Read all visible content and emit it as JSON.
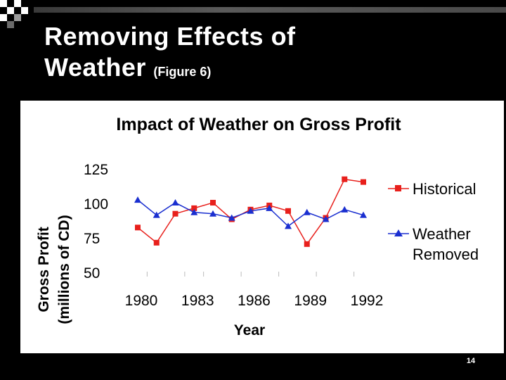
{
  "slide": {
    "title_line1": "Removing Effects of",
    "title_line2": "Weather",
    "title_sub": "(Figure 6)",
    "page_number": "14"
  },
  "chart_data": {
    "type": "line",
    "title": "Impact of Weather on Gross Profit",
    "xlabel": "Year",
    "ylabel_line1": "Gross Profit",
    "ylabel_line2": "(millions of CD)",
    "x": [
      1980,
      1981,
      1982,
      1983,
      1984,
      1985,
      1986,
      1987,
      1988,
      1989,
      1990,
      1991,
      1992
    ],
    "xticks": [
      "1980",
      "1983",
      "1986",
      "1989",
      "1992"
    ],
    "yticks": [
      "125",
      "100",
      "75",
      "50"
    ],
    "ylim": [
      50,
      125
    ],
    "series": [
      {
        "name": "Historical",
        "color": "#e8201c",
        "marker": "square",
        "values": [
          83,
          72,
          93,
          97,
          101,
          89,
          96,
          99,
          95,
          71,
          90,
          118,
          116
        ]
      },
      {
        "name": "Weather Removed",
        "name_line1": "Weather",
        "name_line2": "Removed",
        "color": "#1a2fd0",
        "marker": "triangle",
        "values": [
          103,
          92,
          101,
          94,
          93,
          90,
          95,
          97,
          84,
          94,
          89,
          96,
          92
        ]
      }
    ]
  }
}
